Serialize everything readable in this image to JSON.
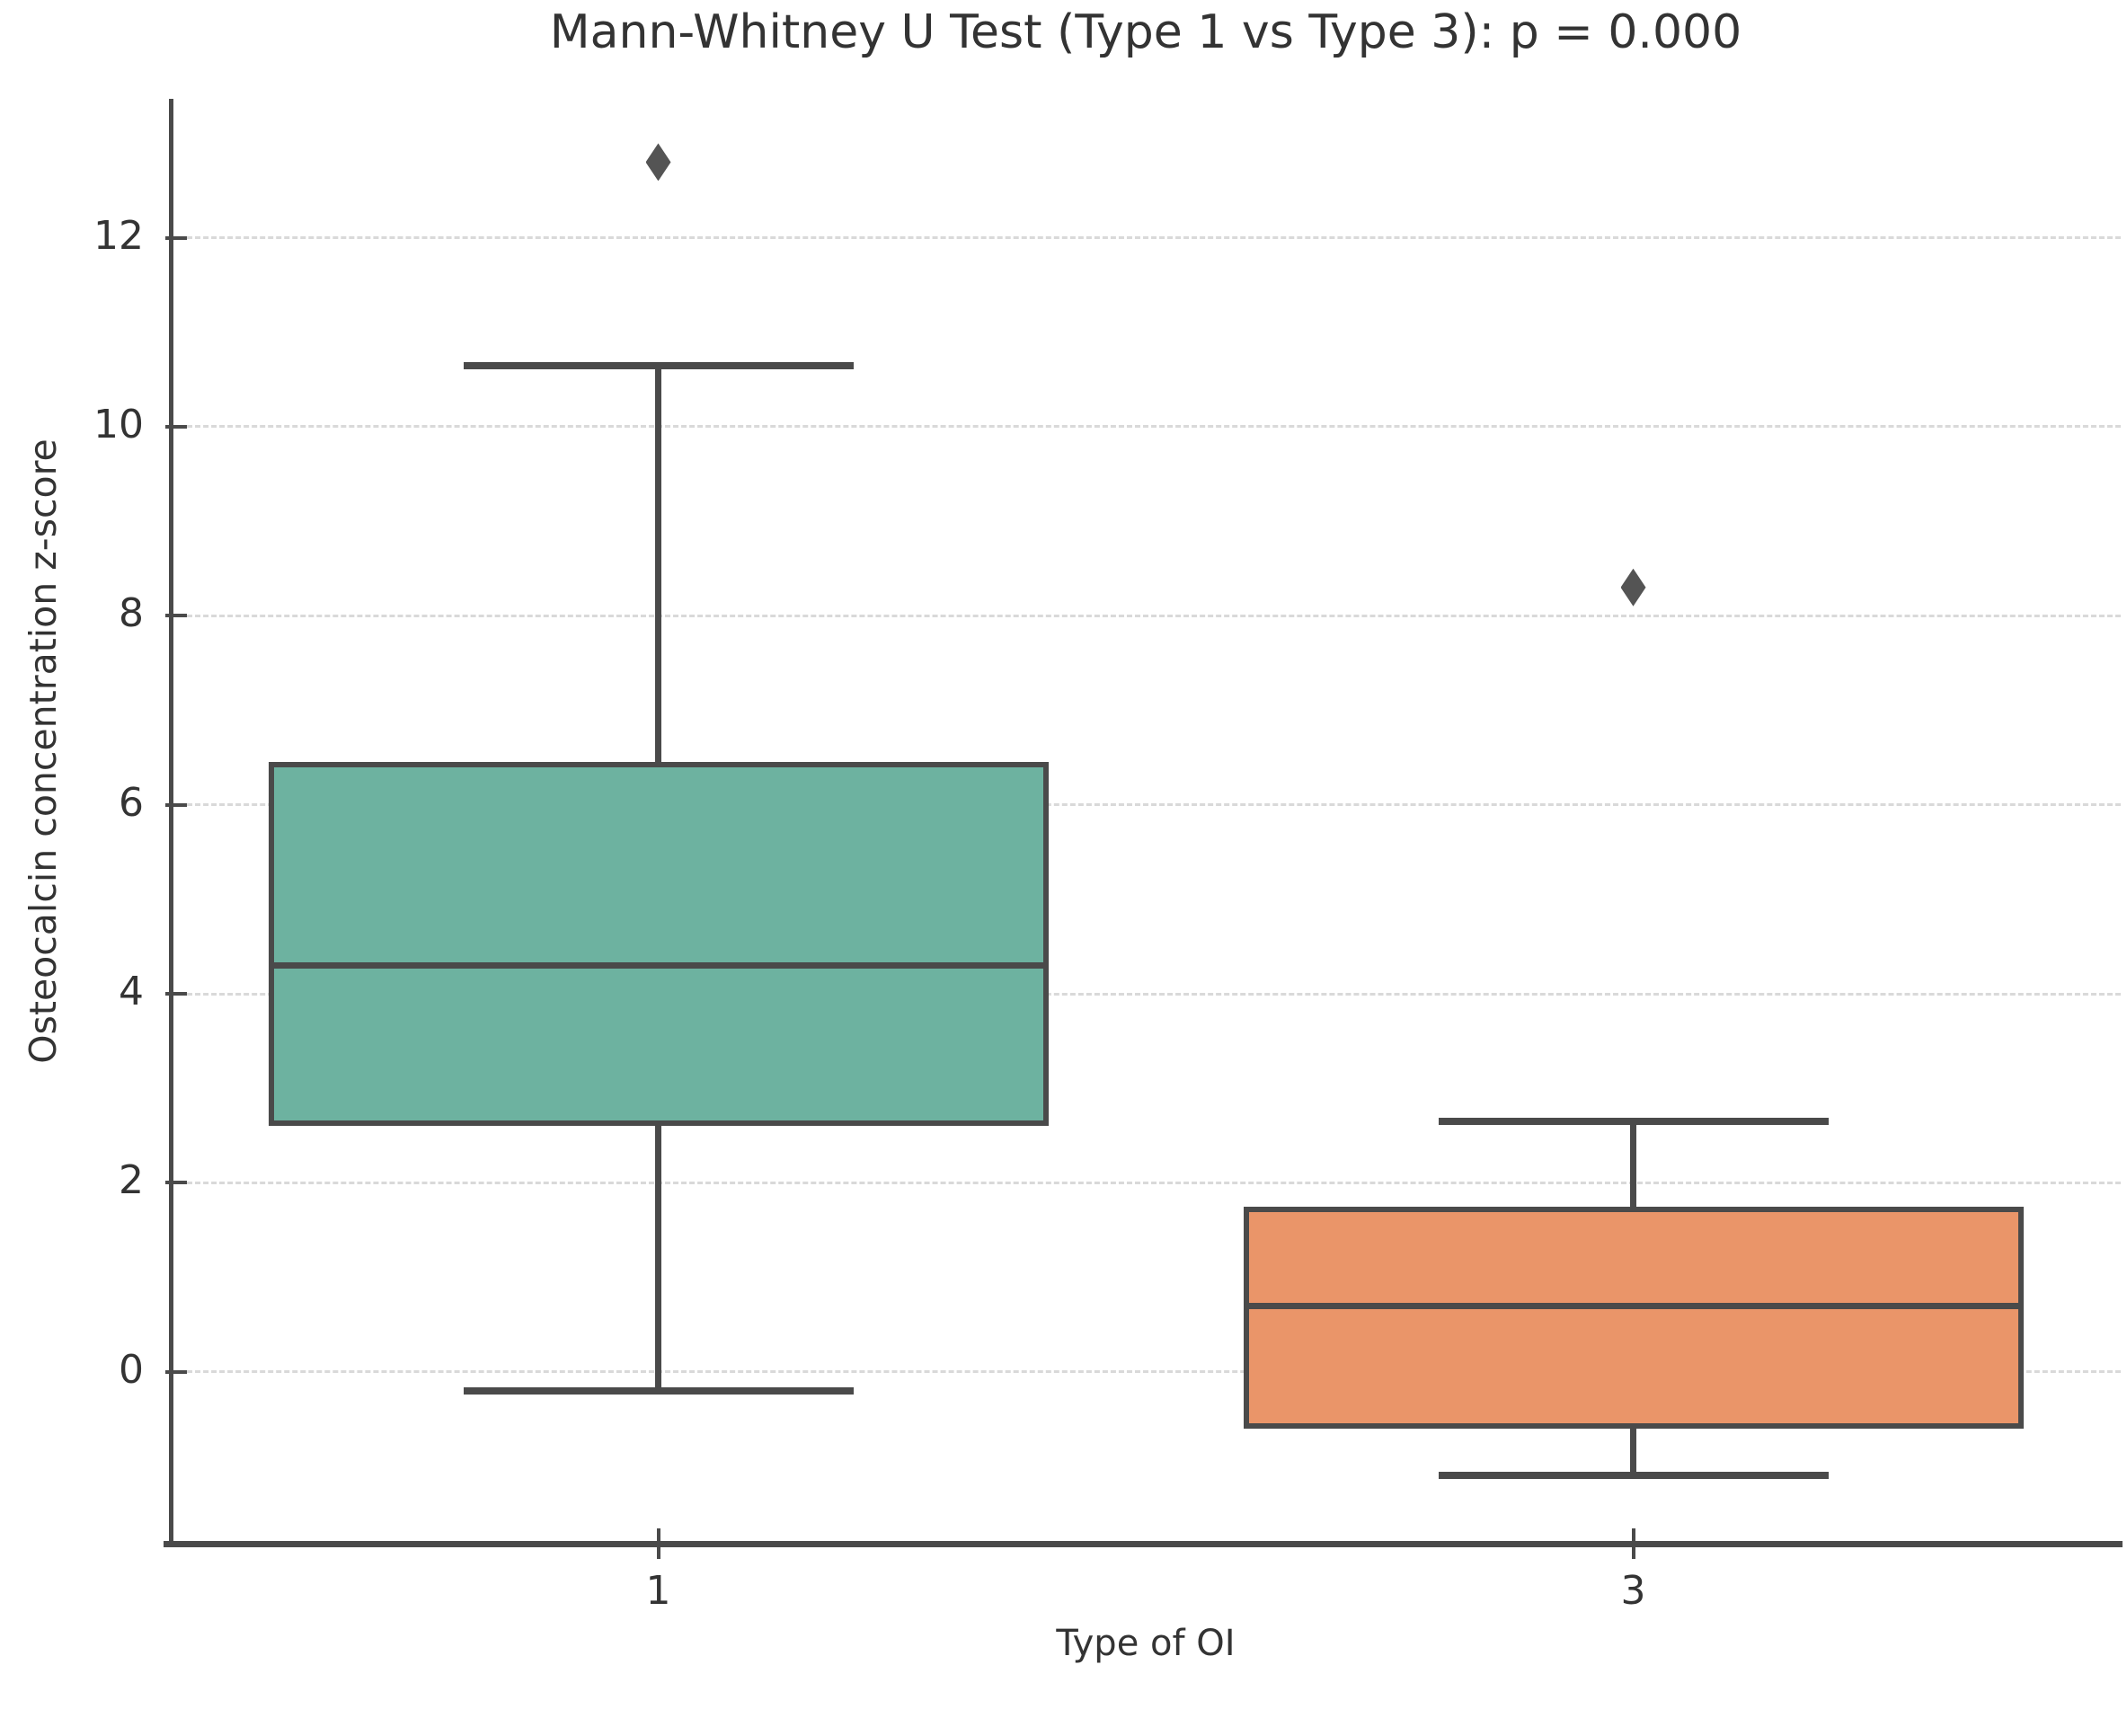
{
  "chart_data": {
    "type": "box",
    "title": "Mann-Whitney U Test (Type 1 vs Type 3): p = 0.000",
    "xlabel": "Type of OI",
    "ylabel": "Osteocalcin concentration z-score",
    "categories": [
      "1",
      "3"
    ],
    "ylim": [
      -1.79,
      13.47
    ],
    "yticks": [
      0,
      2,
      4,
      6,
      8,
      10,
      12
    ],
    "grid": "horizontal-dashed",
    "legend": "none",
    "series": [
      {
        "category": "1",
        "name": "Type 1",
        "color": "#6db2a0",
        "whisker_low": -0.2,
        "q1": 2.6,
        "median": 4.3,
        "q3": 6.45,
        "whisker_high": 10.65,
        "outliers": [
          12.8
        ]
      },
      {
        "category": "3",
        "name": "Type 3",
        "color": "#ea9569",
        "whisker_low": -1.1,
        "q1": -0.6,
        "median": 0.7,
        "q3": 1.75,
        "whisker_high": 2.65,
        "outliers": [
          8.3
        ]
      }
    ],
    "edge_color": "#4a4a4a",
    "gridline_color": "#d9d9d9",
    "text_color": "#333333",
    "background_color": "#ffffff"
  }
}
